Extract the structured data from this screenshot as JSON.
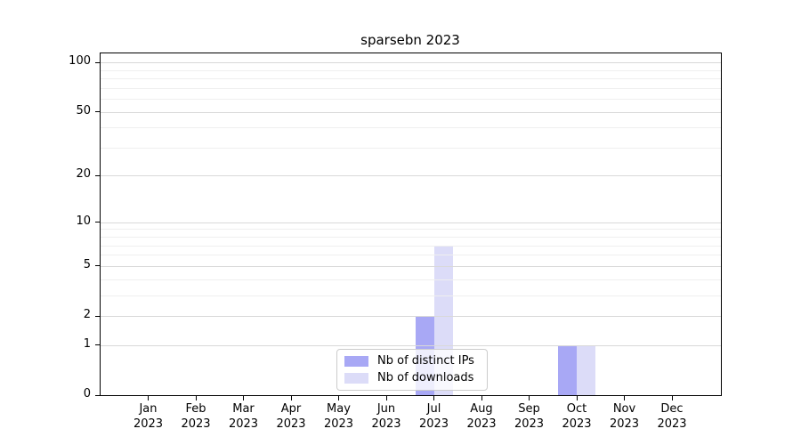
{
  "chart_data": {
    "type": "bar",
    "title": "sparsebn 2023",
    "categories": [
      "Jan",
      "Feb",
      "Mar",
      "Apr",
      "May",
      "Jun",
      "Jul",
      "Aug",
      "Sep",
      "Oct",
      "Nov",
      "Dec"
    ],
    "year_label": "2023",
    "series": [
      {
        "name": "Nb of distinct IPs",
        "color": "#a8a8f5",
        "values": [
          0,
          0,
          0,
          0,
          0,
          0,
          2,
          0,
          0,
          1,
          0,
          0
        ]
      },
      {
        "name": "Nb of downloads",
        "color": "#dcdcf8",
        "values": [
          0,
          0,
          0,
          0,
          0,
          0,
          7,
          0,
          0,
          1,
          0,
          0
        ]
      }
    ],
    "xlabel": "",
    "ylabel": "",
    "yscale": "log1p",
    "ylim": [
      0,
      115
    ],
    "yticks": [
      0,
      1,
      2,
      5,
      10,
      20,
      50,
      100
    ],
    "minor_yticks": [
      3,
      4,
      6,
      7,
      8,
      9,
      30,
      40,
      60,
      70,
      80,
      90
    ],
    "grid": true,
    "legend_position": "lower center",
    "colors": {
      "major_grid": "#d9d9d9",
      "minor_grid": "#efefef",
      "axis": "#000000",
      "background": "#ffffff"
    }
  }
}
